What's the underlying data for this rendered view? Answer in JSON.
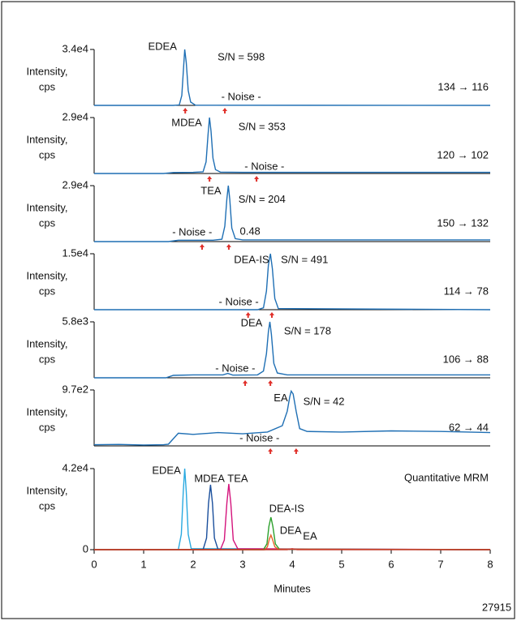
{
  "figure_id": "27915",
  "chart_data": [
    {
      "type": "line",
      "ytick_labels_unit": null,
      "ylabel": [
        "Intensity,",
        "cps"
      ],
      "transition": "134 → 116",
      "xlim": [
        0,
        8
      ],
      "ylim": [
        0,
        34000
      ],
      "yticks": [
        {
          "value": 34000,
          "label": "3.4e4"
        }
      ],
      "series": [
        {
          "color": "#1f6fb4",
          "x": [
            0,
            1.6,
            1.72,
            1.77,
            1.8,
            1.83,
            1.86,
            1.9,
            1.95,
            2.05,
            8
          ],
          "values": [
            0,
            0,
            300,
            6000,
            20000,
            34000,
            26000,
            9000,
            2000,
            100,
            0
          ]
        }
      ],
      "annotations": [
        {
          "text": "EDEA",
          "x": 1.38,
          "y": 35480
        },
        {
          "text": "S/N = 598",
          "x": 2.97,
          "y": 29070
        },
        {
          "text": "- Noise -",
          "x": 2.97,
          "y": 4930
        }
      ],
      "noise_markers": [
        1.84,
        2.64
      ]
    },
    {
      "type": "line",
      "ylabel": [
        "Intensity,",
        "cps"
      ],
      "transition": "120 → 102",
      "xlim": [
        0,
        8
      ],
      "ylim": [
        0,
        29000
      ],
      "yticks": [
        {
          "value": 29000,
          "label": "2.9e4"
        }
      ],
      "series": [
        {
          "color": "#1f6fb4",
          "x": [
            0,
            1.4,
            1.6,
            2.0,
            2.2,
            2.26,
            2.3,
            2.33,
            2.36,
            2.4,
            2.45,
            2.55,
            3.0,
            8
          ],
          "values": [
            0,
            0,
            500,
            600,
            900,
            6000,
            20000,
            29000,
            22000,
            8000,
            2000,
            700,
            600,
            600
          ]
        }
      ],
      "annotations": [
        {
          "text": "MDEA",
          "x": 1.87,
          "y": 26000
        },
        {
          "text": "S/N = 353",
          "x": 3.39,
          "y": 23900
        },
        {
          "text": "- Noise -",
          "x": 3.44,
          "y": 3400
        }
      ],
      "noise_markers": [
        2.33,
        3.28
      ]
    },
    {
      "type": "line",
      "ylabel": [
        "Intensity,",
        "cps"
      ],
      "transition": "150 → 132",
      "xlim": [
        0,
        8
      ],
      "ylim": [
        0,
        29000
      ],
      "yticks": [
        {
          "value": 29000,
          "label": "2.9e4"
        }
      ],
      "series": [
        {
          "color": "#1f6fb4",
          "x": [
            0,
            1.5,
            1.7,
            2.4,
            2.58,
            2.64,
            2.68,
            2.71,
            2.74,
            2.78,
            2.85,
            3.0,
            8
          ],
          "values": [
            0,
            0,
            700,
            700,
            1200,
            8000,
            22000,
            29000,
            22000,
            7000,
            1500,
            900,
            900
          ]
        }
      ],
      "annotations": [
        {
          "text": "TEA",
          "x": 2.36,
          "y": 26000
        },
        {
          "text": "S/N = 204",
          "x": 3.39,
          "y": 21700
        },
        {
          "text": "- Noise -",
          "x": 1.98,
          "y": 4700
        },
        {
          "text": "0.48",
          "x": 3.15,
          "y": 5100
        }
      ],
      "noise_markers": [
        2.18,
        2.72
      ]
    },
    {
      "type": "line",
      "ylabel": [
        "Intensity,",
        "cps"
      ],
      "transition": "114 → 78",
      "xlim": [
        0,
        8
      ],
      "ylim": [
        0,
        15000
      ],
      "yticks": [
        {
          "value": 15000,
          "label": "1.5e4"
        }
      ],
      "series": [
        {
          "color": "#1f6fb4",
          "x": [
            0,
            3.3,
            3.42,
            3.48,
            3.52,
            3.56,
            3.6,
            3.65,
            3.72,
            8
          ],
          "values": [
            0,
            0,
            500,
            5000,
            12000,
            15000,
            11000,
            3000,
            300,
            0
          ]
        }
      ],
      "annotations": [
        {
          "text": "DEA-IS",
          "x": 3.18,
          "y": 13300
        },
        {
          "text": "S/N = 491",
          "x": 4.25,
          "y": 13300
        },
        {
          "text": "- Noise -",
          "x": 2.92,
          "y": 1900
        }
      ],
      "noise_markers": [
        3.11,
        3.59
      ]
    },
    {
      "type": "line",
      "ylabel": [
        "Intensity,",
        "cps"
      ],
      "transition": "106 → 88",
      "xlim": [
        0,
        8
      ],
      "ylim": [
        0,
        5800
      ],
      "yticks": [
        {
          "value": 5800,
          "label": "5.8e3"
        }
      ],
      "series": [
        {
          "color": "#1f6fb4",
          "x": [
            0,
            1.45,
            1.6,
            2.0,
            2.6,
            2.7,
            2.8,
            3.3,
            3.42,
            3.48,
            3.52,
            3.55,
            3.58,
            3.63,
            3.7,
            3.9,
            8
          ],
          "values": [
            0,
            0,
            250,
            300,
            300,
            450,
            280,
            300,
            700,
            2500,
            4800,
            5800,
            4500,
            1500,
            500,
            300,
            300
          ]
        }
      ],
      "annotations": [
        {
          "text": "DEA",
          "x": 3.18,
          "y": 5630
        },
        {
          "text": "S/N = 178",
          "x": 4.31,
          "y": 4800
        },
        {
          "text": "- Noise -",
          "x": 2.85,
          "y": 910
        }
      ],
      "noise_markers": [
        3.05,
        3.56
      ]
    },
    {
      "type": "line",
      "ylabel": [
        "Intensity,",
        "cps"
      ],
      "transition": "62 → 44",
      "xlim": [
        0,
        8
      ],
      "ylim": [
        0,
        970
      ],
      "yticks": [
        {
          "value": 970,
          "label": "9.7e2"
        }
      ],
      "series": [
        {
          "color": "#1f6fb4",
          "x": [
            0,
            0.5,
            1.0,
            1.4,
            1.5,
            1.7,
            2.0,
            2.5,
            3.0,
            3.5,
            3.8,
            3.9,
            3.95,
            3.98,
            4.02,
            4.08,
            4.15,
            4.3,
            5,
            6,
            7,
            8
          ],
          "values": [
            20,
            25,
            15,
            20,
            30,
            220,
            200,
            230,
            210,
            240,
            350,
            600,
            850,
            950,
            900,
            600,
            300,
            250,
            240,
            260,
            250,
            230
          ]
        }
      ],
      "annotations": [
        {
          "text": "EA",
          "x": 3.77,
          "y": 820
        },
        {
          "text": "S/N = 42",
          "x": 4.64,
          "y": 760
        },
        {
          "text": "- Noise -",
          "x": 3.34,
          "y": 127
        }
      ],
      "noise_markers": [
        3.56,
        4.08
      ]
    },
    {
      "type": "line",
      "ylabel": [
        "Intensity,",
        "cps"
      ],
      "title": "Quantitative MRM",
      "xlabel": "Minutes",
      "xlim": [
        0,
        8
      ],
      "xticks": [
        0,
        1,
        2,
        3,
        4,
        5,
        6,
        7,
        8
      ],
      "ylim": [
        0,
        42000
      ],
      "yticks": [
        0,
        {
          "value": 42000,
          "label": "4.2e4"
        }
      ],
      "series": [
        {
          "color": "#29a9e0",
          "x": [
            0,
            1.7,
            1.76,
            1.8,
            1.83,
            1.86,
            1.9,
            1.96,
            8
          ],
          "values": [
            0,
            0,
            8000,
            30000,
            42000,
            30000,
            8000,
            500,
            0
          ]
        },
        {
          "color": "#1a4f9c",
          "x": [
            0,
            2.2,
            2.27,
            2.31,
            2.35,
            2.39,
            2.43,
            2.5,
            8
          ],
          "values": [
            0,
            0,
            6000,
            24000,
            33600,
            24000,
            6000,
            300,
            0
          ]
        },
        {
          "color": "#d4147c",
          "x": [
            0,
            2.55,
            2.63,
            2.68,
            2.72,
            2.76,
            2.81,
            2.9,
            8
          ],
          "values": [
            0,
            0,
            5000,
            24000,
            34000,
            24000,
            5000,
            500,
            0
          ]
        },
        {
          "color": "#2ca02c",
          "x": [
            0,
            3.42,
            3.49,
            3.53,
            3.57,
            3.61,
            3.66,
            3.74,
            8
          ],
          "values": [
            0,
            0,
            3000,
            12000,
            16800,
            12000,
            3000,
            300,
            0
          ]
        },
        {
          "color": "#e8632b",
          "x": [
            0,
            3.45,
            3.5,
            3.54,
            3.57,
            3.6,
            3.65,
            3.72,
            8
          ],
          "values": [
            0,
            0,
            1500,
            5500,
            7500,
            5500,
            1500,
            200,
            0
          ]
        },
        {
          "color": "#c0392b",
          "x": [
            0,
            3.9,
            4.0,
            4.1,
            8
          ],
          "values": [
            0,
            0,
            500,
            0,
            0
          ]
        }
      ],
      "annotations": [
        {
          "text": "EDEA",
          "x": 1.46,
          "y": 40700
        },
        {
          "text": "MDEA",
          "x": 2.33,
          "y": 36500
        },
        {
          "text": "TEA",
          "x": 2.9,
          "y": 36500
        },
        {
          "text": "DEA-IS",
          "x": 3.89,
          "y": 21000
        },
        {
          "text": "DEA",
          "x": 3.97,
          "y": 9700
        },
        {
          "text": "EA",
          "x": 4.36,
          "y": 6700
        }
      ]
    }
  ]
}
